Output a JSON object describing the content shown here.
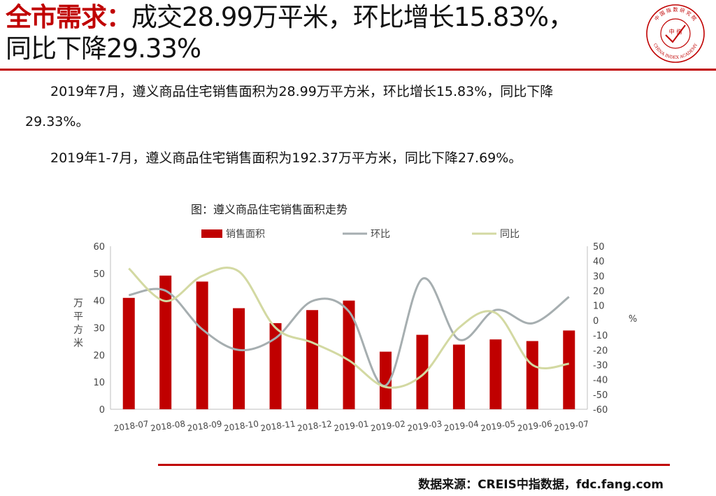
{
  "header": {
    "title_red": "全市需求：",
    "title_line1_rest": "成交28.99万平米，环比增长15.83%，",
    "title_line2": "同比下降29.33%"
  },
  "logo": {
    "top_text": "中 国 指 数 研 究 院",
    "center_text": "中 指",
    "bottom_text": "CHINA INDEX ACADEMY"
  },
  "body": {
    "para1_line1": "2019年7月，遵义商品住宅销售面积为28.99万平方米，环比增长15.83%，同比下降",
    "para1_line2": "29.33%。",
    "para2": "2019年1-7月，遵义商品住宅销售面积为192.37万平方米，同比下降27.69%。"
  },
  "chart_data": {
    "type": "bar",
    "title": "图：遵义商品住宅销售面积走势",
    "categories": [
      "2018-07",
      "2018-08",
      "2018-09",
      "2018-10",
      "2018-11",
      "2018-12",
      "2019-01",
      "2019-02",
      "2019-03",
      "2019-04",
      "2019-05",
      "2019-06",
      "2019-07"
    ],
    "series": [
      {
        "name": "销售面积",
        "kind": "bar",
        "axis": "left",
        "color": "#c00000",
        "values": [
          41,
          49.2,
          47,
          37.2,
          31.7,
          36.5,
          40,
          21.2,
          27.4,
          23.8,
          25.7,
          25.1,
          28.99
        ]
      },
      {
        "name": "环比",
        "kind": "line",
        "axis": "right",
        "color": "#a6aeb0",
        "values": [
          17,
          20,
          -6,
          -20,
          -12,
          13,
          6,
          -44,
          28,
          -13,
          7,
          -2,
          15.83
        ]
      },
      {
        "name": "同比",
        "kind": "line",
        "axis": "right",
        "color": "#d3d9a2",
        "values": [
          35,
          13,
          30,
          33,
          -5,
          -15,
          -27,
          -45,
          -37,
          -5,
          5,
          -30,
          -29.33
        ]
      }
    ],
    "ylabel": "万平方米",
    "ylabel_right": "%",
    "ylim": [
      0,
      60
    ],
    "yticks": [
      0,
      10,
      20,
      30,
      40,
      50,
      60
    ],
    "y2lim": [
      -60,
      50
    ],
    "y2ticks": [
      50,
      40,
      30,
      20,
      10,
      0,
      -10,
      -20,
      -30,
      -40,
      -50,
      -60
    ],
    "legend_position": "top-center",
    "grid": false
  },
  "footer": {
    "source": "数据来源：CREIS中指数据，fdc.fang.com"
  },
  "colors": {
    "accent": "#c00000"
  }
}
